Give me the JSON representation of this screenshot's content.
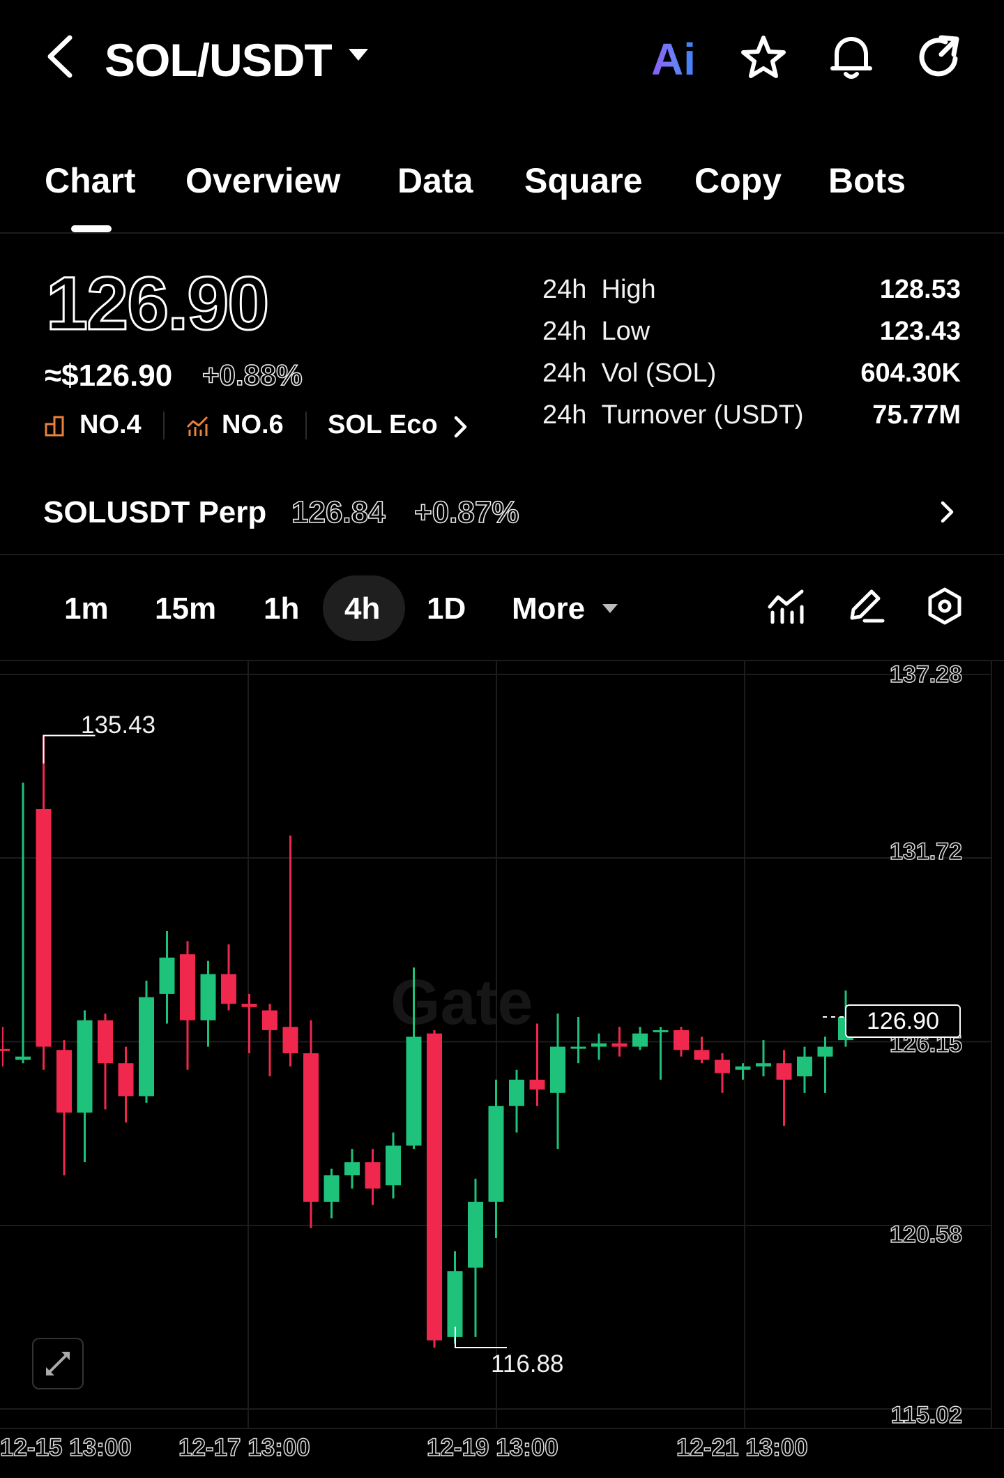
{
  "header": {
    "pair": "SOL/USDT",
    "icons": [
      "back-arrow-icon",
      "ai-icon",
      "star-icon",
      "bell-icon",
      "share-icon"
    ],
    "ai_label": "Ai"
  },
  "tabs": [
    "Chart",
    "Overview",
    "Data",
    "Square",
    "Copy",
    "Bots"
  ],
  "active_tab": "Chart",
  "ticker": {
    "price": "126.90",
    "usd_price": "≈$126.90",
    "change_pct": "+0.88%",
    "rank1": "NO.4",
    "rank2": "NO.6",
    "eco": "SOL Eco"
  },
  "stats": [
    {
      "prefix": "24h",
      "label": "High",
      "value": "128.53"
    },
    {
      "prefix": "24h",
      "label": "Low",
      "value": "123.43"
    },
    {
      "prefix": "24h",
      "label": "Vol (SOL)",
      "value": "604.30K"
    },
    {
      "prefix": "24h",
      "label": "Turnover (USDT)",
      "value": "75.77M"
    }
  ],
  "perp": {
    "name": "SOLUSDT Perp",
    "price": "126.84",
    "change": "+0.87%"
  },
  "timeframes": [
    "1m",
    "15m",
    "1h",
    "4h",
    "1D",
    "More"
  ],
  "active_timeframe": "4h",
  "watermark": "Gate",
  "colors": {
    "up": "#1ec27a",
    "down": "#f0284d",
    "bg": "#000000",
    "grid": "#1c1c1c"
  },
  "chart_data": {
    "type": "candlestick",
    "y_ticks": [
      "137.28",
      "131.72",
      "126.15",
      "120.58",
      "115.02"
    ],
    "ylim": [
      115.02,
      137.28
    ],
    "x_ticks": [
      "12-15 13:00",
      "12-17 13:00",
      "12-19 13:00",
      "12-21 13:00"
    ],
    "current_price": "126.90",
    "high_label": "135.43",
    "low_label": "116.88",
    "candles": [
      {
        "o": 125.6,
        "h": 134.0,
        "l": 125.5,
        "c": 125.7
      },
      {
        "o": 133.2,
        "h": 135.43,
        "l": 125.3,
        "c": 126.0
      },
      {
        "o": 125.9,
        "h": 126.2,
        "l": 122.1,
        "c": 124.0
      },
      {
        "o": 124.0,
        "h": 127.1,
        "l": 122.5,
        "c": 126.8
      },
      {
        "o": 126.8,
        "h": 127.0,
        "l": 124.1,
        "c": 125.5
      },
      {
        "o": 125.5,
        "h": 126.0,
        "l": 123.7,
        "c": 124.5
      },
      {
        "o": 124.5,
        "h": 128.0,
        "l": 124.3,
        "c": 127.5
      },
      {
        "o": 127.6,
        "h": 129.5,
        "l": 126.7,
        "c": 128.7
      },
      {
        "o": 128.8,
        "h": 129.2,
        "l": 125.3,
        "c": 126.8
      },
      {
        "o": 126.8,
        "h": 128.6,
        "l": 126.0,
        "c": 128.2
      },
      {
        "o": 128.2,
        "h": 129.1,
        "l": 127.1,
        "c": 127.3
      },
      {
        "o": 127.3,
        "h": 127.6,
        "l": 125.8,
        "c": 127.2
      },
      {
        "o": 127.1,
        "h": 127.3,
        "l": 125.1,
        "c": 126.5
      },
      {
        "o": 126.6,
        "h": 132.4,
        "l": 125.4,
        "c": 125.8
      },
      {
        "o": 125.8,
        "h": 126.8,
        "l": 120.5,
        "c": 121.3
      },
      {
        "o": 121.3,
        "h": 122.3,
        "l": 120.8,
        "c": 122.1
      },
      {
        "o": 122.1,
        "h": 122.9,
        "l": 121.7,
        "c": 122.5
      },
      {
        "o": 122.5,
        "h": 122.9,
        "l": 121.2,
        "c": 121.7
      },
      {
        "o": 121.8,
        "h": 123.4,
        "l": 121.4,
        "c": 123.0
      },
      {
        "o": 123.0,
        "h": 128.4,
        "l": 122.9,
        "c": 126.3
      },
      {
        "o": 126.4,
        "h": 126.5,
        "l": 116.88,
        "c": 117.1
      },
      {
        "o": 117.2,
        "h": 119.8,
        "l": 117.0,
        "c": 119.2
      },
      {
        "o": 119.3,
        "h": 122.0,
        "l": 117.2,
        "c": 121.3
      },
      {
        "o": 121.3,
        "h": 125.0,
        "l": 120.2,
        "c": 124.2
      },
      {
        "o": 124.2,
        "h": 125.3,
        "l": 123.4,
        "c": 125.0
      },
      {
        "o": 125.0,
        "h": 126.7,
        "l": 124.2,
        "c": 124.7
      },
      {
        "o": 124.6,
        "h": 127.0,
        "l": 122.9,
        "c": 126.0
      },
      {
        "o": 126.0,
        "h": 126.9,
        "l": 125.5,
        "c": 126.0
      },
      {
        "o": 126.0,
        "h": 126.4,
        "l": 125.6,
        "c": 126.1
      },
      {
        "o": 126.1,
        "h": 126.6,
        "l": 125.7,
        "c": 126.0
      },
      {
        "o": 126.0,
        "h": 126.6,
        "l": 125.9,
        "c": 126.4
      },
      {
        "o": 126.5,
        "h": 126.6,
        "l": 125.0,
        "c": 126.5
      },
      {
        "o": 126.5,
        "h": 126.6,
        "l": 125.7,
        "c": 125.9
      },
      {
        "o": 125.9,
        "h": 126.3,
        "l": 125.5,
        "c": 125.6
      },
      {
        "o": 125.6,
        "h": 125.8,
        "l": 124.6,
        "c": 125.2
      },
      {
        "o": 125.3,
        "h": 125.5,
        "l": 125.0,
        "c": 125.4
      },
      {
        "o": 125.4,
        "h": 126.2,
        "l": 125.1,
        "c": 125.5
      },
      {
        "o": 125.5,
        "h": 125.9,
        "l": 123.6,
        "c": 125.0
      },
      {
        "o": 125.1,
        "h": 126.0,
        "l": 124.6,
        "c": 125.7
      },
      {
        "o": 125.7,
        "h": 126.3,
        "l": 124.6,
        "c": 126.0
      },
      {
        "o": 126.2,
        "h": 127.7,
        "l": 126.0,
        "c": 126.9
      }
    ]
  }
}
